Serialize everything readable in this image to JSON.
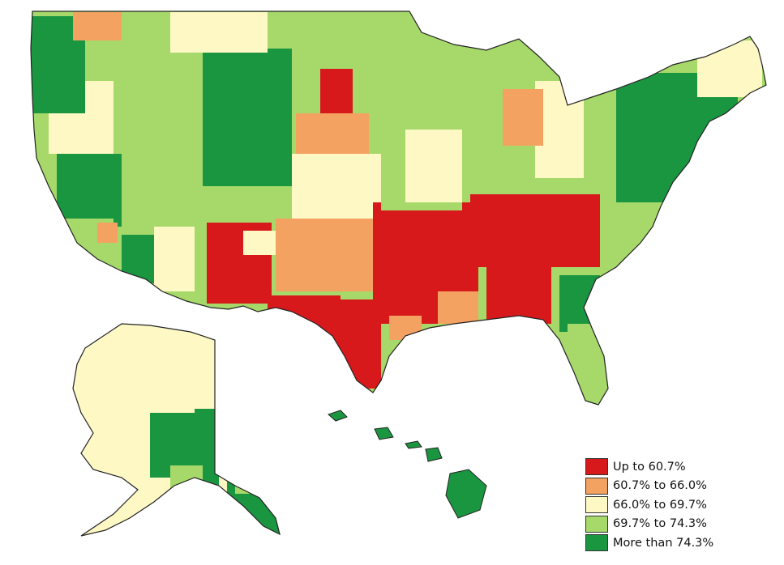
{
  "map": {
    "legend": [
      {
        "label": "Up to 60.7%",
        "color": "#d7191c"
      },
      {
        "label": "60.7% to 66.0%",
        "color": "#f4a261"
      },
      {
        "label": "66.0% to 69.7%",
        "color": "#fdf8c4"
      },
      {
        "label": "69.7% to 74.3%",
        "color": "#a6d96a"
      },
      {
        "label": "More than 74.3%",
        "color": "#1a9641"
      }
    ]
  }
}
